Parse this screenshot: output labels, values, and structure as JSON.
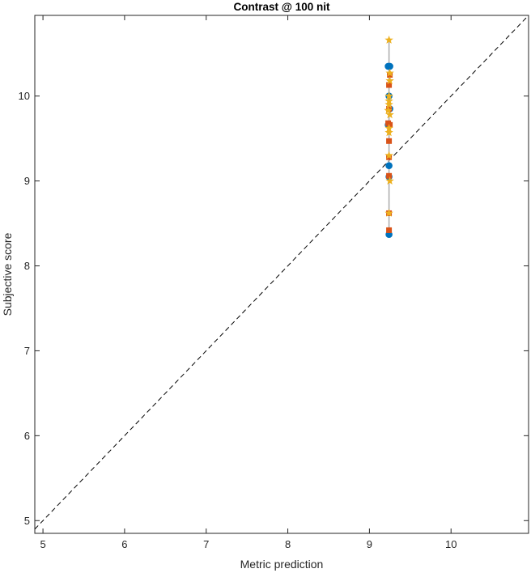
{
  "chart_data": {
    "type": "scatter",
    "title": "Contrast @ 100 nit",
    "xlabel": "Metric prediction",
    "ylabel": "Subjective score",
    "xlim": [
      4.9,
      10.95
    ],
    "ylim": [
      4.85,
      10.95
    ],
    "xticks": [
      5,
      6,
      7,
      8,
      9,
      10
    ],
    "yticks": [
      5,
      6,
      7,
      8,
      9,
      10
    ],
    "grid": false,
    "reference_line": {
      "style": "dashed",
      "color": "#000000",
      "x": [
        4.9,
        10.95
      ],
      "y": [
        4.9,
        10.95
      ]
    },
    "range_line": {
      "color": "#aaaaaa",
      "x": 9.24,
      "y": [
        8.37,
        10.66
      ]
    },
    "series": [
      {
        "marker": "circle",
        "color": "#0072BD",
        "x": [
          9.23,
          9.25,
          9.24,
          9.25,
          9.24,
          9.24,
          9.23,
          9.24
        ],
        "y": [
          10.35,
          10.35,
          10.0,
          9.85,
          9.18,
          9.05,
          9.66,
          8.37
        ]
      },
      {
        "marker": "square",
        "color": "#D95319",
        "x": [
          9.25,
          9.24,
          9.23,
          9.25,
          9.24,
          9.24,
          9.24,
          9.24,
          9.24,
          9.24
        ],
        "y": [
          10.25,
          10.13,
          9.68,
          9.66,
          9.47,
          9.28,
          9.06,
          8.62,
          8.42,
          9.85
        ]
      },
      {
        "marker": "star",
        "color": "#EDB120",
        "x": [
          9.24,
          9.25,
          9.25,
          9.24,
          9.24,
          9.23,
          9.25,
          9.24,
          9.24,
          9.25,
          9.24,
          9.24,
          9.24
        ],
        "y": [
          10.66,
          10.27,
          10.18,
          10.0,
          9.94,
          9.83,
          9.78,
          9.57,
          9.3,
          9.0,
          8.62,
          9.9,
          9.62
        ]
      }
    ]
  }
}
